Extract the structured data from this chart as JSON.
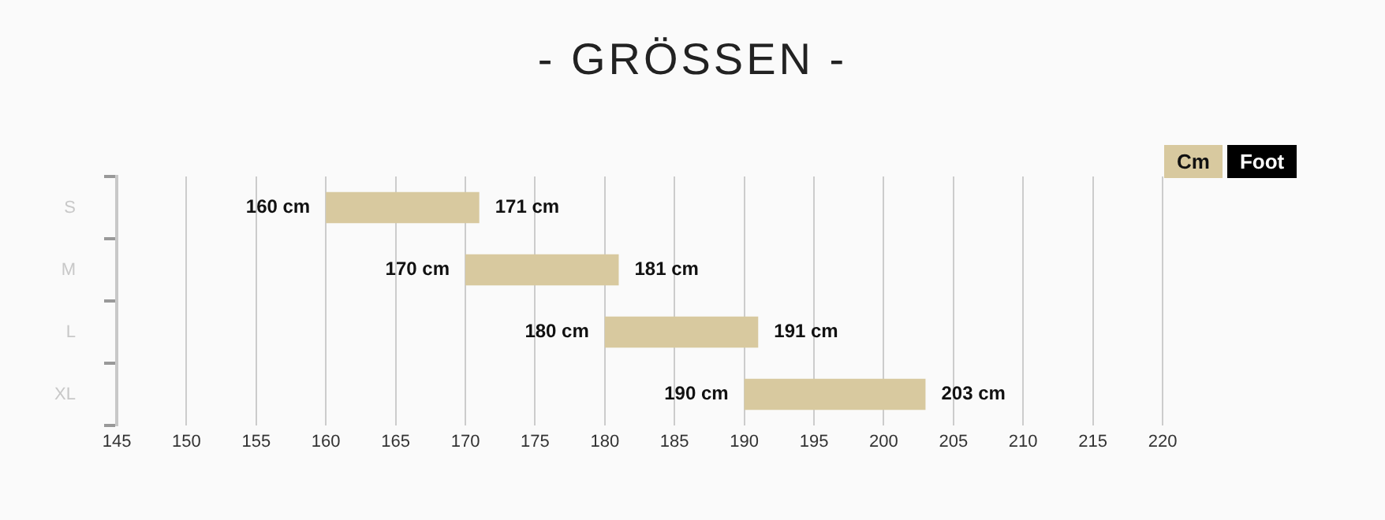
{
  "chart_data": {
    "type": "bar",
    "orientation": "horizontal",
    "title": "- GRÖSSEN -",
    "categories": [
      "S",
      "M",
      "L",
      "XL"
    ],
    "base": [
      160,
      170,
      180,
      190
    ],
    "values": [
      11,
      11,
      11,
      13
    ],
    "color": "#d8c99f",
    "xlim": [
      145,
      220
    ],
    "xticks": [
      145,
      150,
      155,
      160,
      165,
      170,
      175,
      180,
      185,
      190,
      195,
      200,
      205,
      210,
      215,
      220
    ],
    "grid": "x",
    "annotations": [
      {
        "text": "160 cm",
        "x": 160,
        "y": "S"
      },
      {
        "text": "171 cm",
        "x": 171,
        "y": "S"
      },
      {
        "text": "170 cm",
        "x": 170,
        "y": "M"
      },
      {
        "text": "181 cm",
        "x": 181,
        "y": "M"
      },
      {
        "text": "180 cm",
        "x": 180,
        "y": "L"
      },
      {
        "text": "191 cm",
        "x": 191,
        "y": "L"
      },
      {
        "text": "190 cm",
        "x": 190,
        "y": "XL"
      },
      {
        "text": "203 cm",
        "x": 203,
        "y": "XL"
      },
      "Cm",
      "Foot"
    ]
  }
}
